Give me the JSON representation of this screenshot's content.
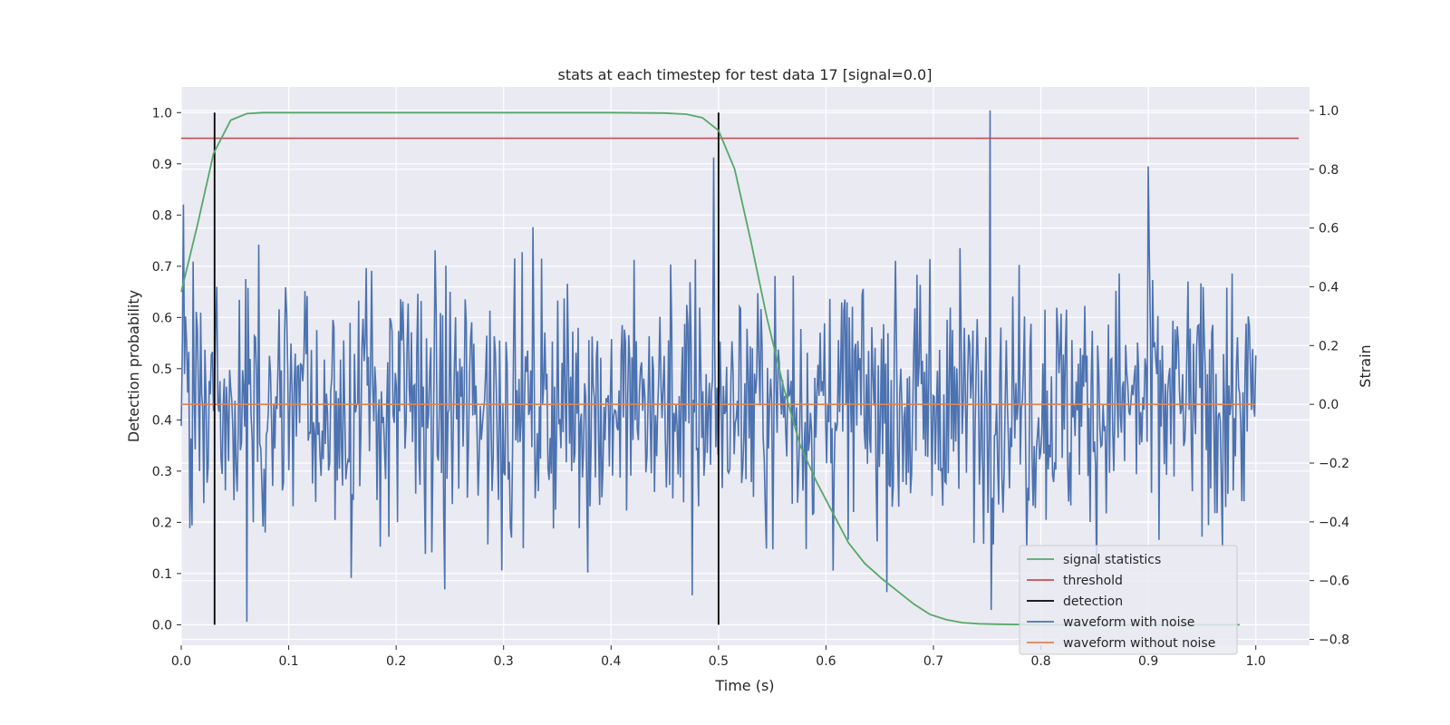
{
  "chart_data": {
    "type": "line",
    "title": "stats at each timestep for test data 17 [signal=0.0]",
    "xlabel": "Time (s)",
    "ylabel": "Detection probability",
    "y2label": "Strain",
    "xlim": [
      0.0,
      1.05
    ],
    "ylim": [
      -0.04,
      1.05
    ],
    "y2lim": [
      -0.82,
      1.08
    ],
    "xticks": [
      "0.0",
      "0.1",
      "0.2",
      "0.3",
      "0.4",
      "0.5",
      "0.6",
      "0.7",
      "0.8",
      "0.9",
      "1.0"
    ],
    "xtick_values": [
      0.0,
      0.1,
      0.2,
      0.3,
      0.4,
      0.5,
      0.6,
      0.7,
      0.8,
      0.9,
      1.0
    ],
    "yticks": [
      "0.0",
      "0.1",
      "0.2",
      "0.3",
      "0.4",
      "0.5",
      "0.6",
      "0.7",
      "0.8",
      "0.9",
      "1.0"
    ],
    "ytick_values": [
      0.0,
      0.1,
      0.2,
      0.3,
      0.4,
      0.5,
      0.6,
      0.7,
      0.8,
      0.9,
      1.0
    ],
    "y2ticks": [
      "−0.8",
      "−0.6",
      "−0.4",
      "−0.2",
      "0.0",
      "0.2",
      "0.4",
      "0.6",
      "0.8",
      "1.0"
    ],
    "y2tick_values": [
      -0.8,
      -0.6,
      -0.4,
      -0.2,
      0.0,
      0.2,
      0.4,
      0.6,
      0.8,
      1.0
    ],
    "grid": true,
    "legend_position": "lower-right",
    "colors": {
      "background": "#eaeaf2",
      "grid": "#ffffff",
      "signal": "#55a868",
      "threshold": "#c44e52",
      "detection": "#000000",
      "noisy": "#4c72b0",
      "clean": "#dd8452"
    },
    "series": [
      {
        "name": "signal statistics",
        "axis": "left",
        "x": [
          0.0,
          0.015,
          0.03,
          0.046,
          0.061,
          0.076,
          0.091,
          0.2,
          0.3,
          0.4,
          0.45,
          0.47,
          0.485,
          0.5,
          0.515,
          0.53,
          0.545,
          0.561,
          0.576,
          0.591,
          0.606,
          0.621,
          0.636,
          0.652,
          0.667,
          0.682,
          0.697,
          0.712,
          0.727,
          0.742,
          0.76,
          0.8,
          0.9,
          0.985
        ],
        "y": [
          0.65,
          0.78,
          0.92,
          0.985,
          0.998,
          1.0,
          1.0,
          1.0,
          1.0,
          1.0,
          0.999,
          0.997,
          0.99,
          0.965,
          0.89,
          0.75,
          0.6,
          0.46,
          0.35,
          0.28,
          0.22,
          0.16,
          0.12,
          0.09,
          0.065,
          0.04,
          0.02,
          0.01,
          0.004,
          0.002,
          0.001,
          0.0,
          0.0,
          0.0
        ]
      },
      {
        "name": "threshold",
        "axis": "left",
        "x": [
          0.0,
          1.04
        ],
        "y": [
          0.95,
          0.95
        ]
      },
      {
        "name": "detection",
        "axis": "left",
        "segments": [
          {
            "x": 0.031,
            "y": [
              0.0,
              1.0
            ]
          },
          {
            "x": 0.5,
            "y": [
              0.0,
              1.0
            ]
          }
        ]
      },
      {
        "name": "waveform with noise",
        "axis": "right",
        "x_range": [
          0.0,
          1.0
        ],
        "n_points": 1000,
        "std": 0.22,
        "notable_points": [
          {
            "x": 0.002,
            "y": 0.68
          },
          {
            "x": 0.061,
            "y": -0.74
          },
          {
            "x": 0.495,
            "y": 0.84
          },
          {
            "x": 0.753,
            "y": 1.0
          },
          {
            "x": 0.9,
            "y": 0.81
          },
          {
            "x": 0.245,
            "y": -0.63
          },
          {
            "x": 0.475,
            "y": -0.65
          }
        ]
      },
      {
        "name": "waveform without noise",
        "axis": "right",
        "x": [
          0.0,
          1.0
        ],
        "y": [
          0.0,
          0.0
        ]
      }
    ]
  }
}
